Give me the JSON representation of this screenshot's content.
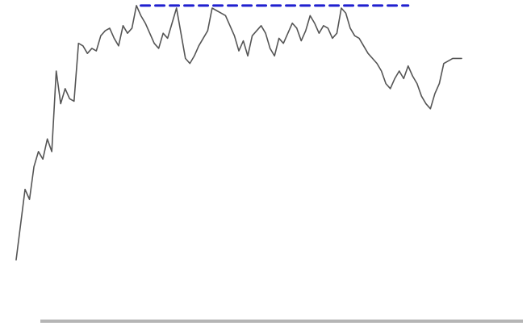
{
  "chart_data": {
    "type": "line",
    "title": "",
    "xlabel": "",
    "ylabel": "",
    "grid": false,
    "legend": "none",
    "x": [
      0,
      1,
      2,
      3,
      4,
      5,
      6,
      7,
      8,
      9,
      10,
      11,
      12,
      13,
      14,
      15,
      16,
      17,
      18,
      19,
      20,
      21,
      22,
      23,
      24,
      25,
      26,
      27,
      28,
      29,
      30,
      31,
      32,
      33,
      34,
      35,
      36,
      37,
      38,
      39,
      40,
      41,
      42,
      43,
      44,
      45,
      46,
      47,
      48,
      49,
      50,
      51,
      52,
      53,
      54,
      55,
      56,
      57,
      58,
      59,
      60,
      61,
      62,
      63,
      64,
      65,
      66,
      67,
      68,
      69,
      70,
      71,
      72,
      73,
      74,
      75,
      76,
      77,
      78,
      79,
      80,
      81,
      82,
      83,
      84,
      85,
      86,
      87,
      88,
      89,
      90,
      91,
      92,
      93,
      94,
      95,
      96,
      97,
      98,
      99,
      100
    ],
    "xlim": [
      0,
      100
    ],
    "ylim": [
      0,
      100
    ],
    "series": [
      {
        "color": "#555555",
        "values": [
          0,
          14,
          28,
          24,
          37,
          43,
          40,
          48,
          43,
          75,
          62,
          68,
          64,
          63,
          86,
          85,
          82,
          84,
          83,
          89,
          91,
          92,
          88,
          85,
          93,
          90,
          92,
          101,
          97,
          94,
          90,
          86,
          84,
          90,
          88,
          94,
          100,
          90,
          80,
          78,
          81,
          85,
          88,
          91,
          100,
          99,
          98,
          97,
          93,
          89,
          83,
          87,
          81,
          89,
          91,
          93,
          90,
          84,
          81,
          88,
          86,
          90,
          94,
          92,
          87,
          91,
          97,
          94,
          90,
          93,
          92,
          88,
          90,
          100,
          98,
          92,
          89,
          88,
          85,
          82,
          80,
          78,
          75,
          70,
          68,
          72,
          75,
          72,
          77,
          73,
          70,
          65,
          62,
          60,
          66,
          70,
          78,
          79,
          80,
          80,
          80
        ]
      },
      {
        "color": "#1f1fcf",
        "style": "dashed",
        "x": [
          28,
          88
        ],
        "values": [
          101,
          101
        ]
      }
    ]
  }
}
